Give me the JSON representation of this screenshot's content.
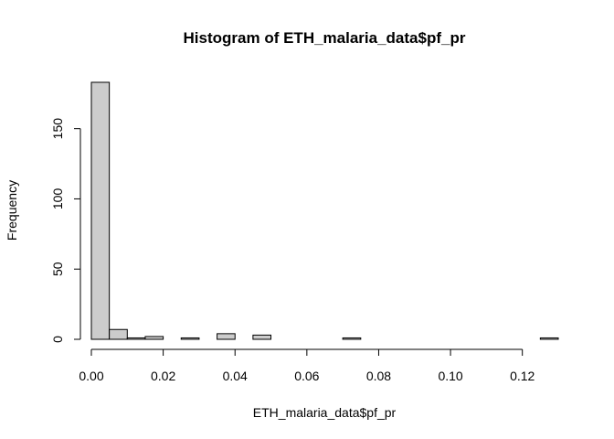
{
  "chart_data": {
    "type": "bar",
    "title": "Histogram of ETH_malaria_data$pf_pr",
    "xlabel": "ETH_malaria_data$pf_pr",
    "ylabel": "Frequency",
    "bin_width": 0.005,
    "bins": [
      {
        "start": 0.0,
        "count": 183
      },
      {
        "start": 0.005,
        "count": 7
      },
      {
        "start": 0.01,
        "count": 1
      },
      {
        "start": 0.015,
        "count": 2
      },
      {
        "start": 0.02,
        "count": 0
      },
      {
        "start": 0.025,
        "count": 1
      },
      {
        "start": 0.03,
        "count": 0
      },
      {
        "start": 0.035,
        "count": 4
      },
      {
        "start": 0.04,
        "count": 0
      },
      {
        "start": 0.045,
        "count": 3
      },
      {
        "start": 0.05,
        "count": 0
      },
      {
        "start": 0.055,
        "count": 0
      },
      {
        "start": 0.06,
        "count": 0
      },
      {
        "start": 0.065,
        "count": 0
      },
      {
        "start": 0.07,
        "count": 1
      },
      {
        "start": 0.075,
        "count": 0
      },
      {
        "start": 0.08,
        "count": 0
      },
      {
        "start": 0.085,
        "count": 0
      },
      {
        "start": 0.09,
        "count": 0
      },
      {
        "start": 0.095,
        "count": 0
      },
      {
        "start": 0.1,
        "count": 0
      },
      {
        "start": 0.105,
        "count": 0
      },
      {
        "start": 0.11,
        "count": 0
      },
      {
        "start": 0.115,
        "count": 0
      },
      {
        "start": 0.12,
        "count": 0
      },
      {
        "start": 0.125,
        "count": 1
      }
    ],
    "xlim": [
      0,
      0.13
    ],
    "ylim": [
      0,
      183
    ],
    "x_ticks": [
      {
        "value": 0.0,
        "label": "0.00"
      },
      {
        "value": 0.02,
        "label": "0.02"
      },
      {
        "value": 0.04,
        "label": "0.04"
      },
      {
        "value": 0.06,
        "label": "0.06"
      },
      {
        "value": 0.08,
        "label": "0.08"
      },
      {
        "value": 0.1,
        "label": "0.10"
      },
      {
        "value": 0.12,
        "label": "0.12"
      }
    ],
    "y_ticks": [
      {
        "value": 0,
        "label": "0"
      },
      {
        "value": 50,
        "label": "50"
      },
      {
        "value": 100,
        "label": "100"
      },
      {
        "value": 150,
        "label": "150"
      }
    ],
    "colors": {
      "bar_fill": "#cccccc",
      "bar_stroke": "#000000"
    },
    "grid": false,
    "legend": "none"
  }
}
